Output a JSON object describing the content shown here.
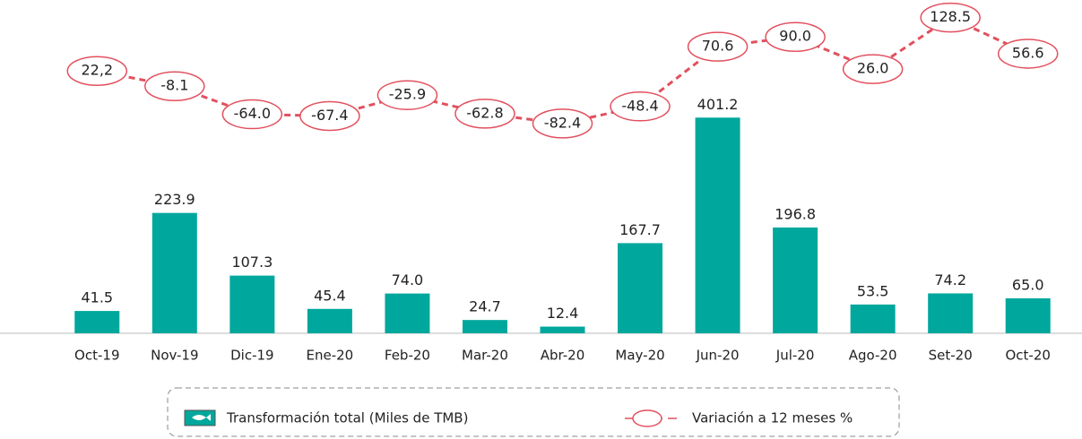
{
  "chart_data": {
    "type": "bar",
    "categories": [
      "Oct-19",
      "Nov-19",
      "Dic-19",
      "Ene-20",
      "Feb-20",
      "Mar-20",
      "Abr-20",
      "May-20",
      "Jun-20",
      "Jul-20",
      "Ago-20",
      "Set-20",
      "Oct-20"
    ],
    "series": [
      {
        "name": "Transformación  total (Miles de TMB)",
        "type": "bar",
        "color": "#00a79d",
        "axis": "y",
        "values": [
          41.5,
          223.9,
          107.3,
          45.4,
          74.0,
          24.7,
          12.4,
          167.7,
          401.2,
          196.8,
          53.5,
          74.2,
          65.0
        ],
        "value_labels": [
          "41.5",
          "223.9",
          "107.3",
          "45.4",
          "74.0",
          "24.7",
          "12.4",
          "167.7",
          "401.2",
          "196.8",
          "53.5",
          "74.2",
          "65.0"
        ]
      },
      {
        "name": "Variación a 12 meses %",
        "type": "line",
        "color": "#e2505e",
        "axis": "y2",
        "values": [
          22.2,
          -8.1,
          -64.0,
          -67.4,
          -25.9,
          -62.8,
          -82.4,
          -48.4,
          70.6,
          90.0,
          26.0,
          128.5,
          56.6
        ],
        "value_labels": [
          "22,2",
          "-8.1",
          "-64.0",
          "-67.4",
          "-25.9",
          "-62.8",
          "-82.4",
          "-48.4",
          "70.6",
          "90.0",
          "26.0",
          "128.5",
          "56.6"
        ]
      }
    ],
    "ylim": [
      0,
      570
    ],
    "y2lim": [
      -500,
      110
    ]
  }
}
